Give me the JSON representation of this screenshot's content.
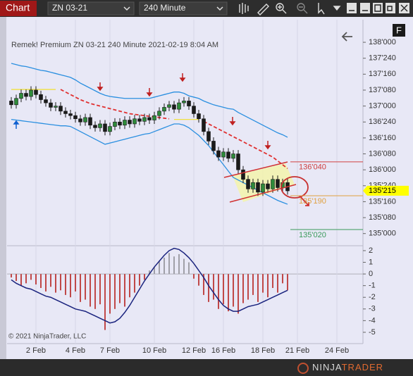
{
  "toolbar": {
    "title": "Chart",
    "instrument": "ZN 03-21",
    "interval": "240 Minute"
  },
  "ui": {
    "f_button": "F",
    "copyright": "© 2021 NinjaTrader, LLC",
    "logo": [
      "NINJA",
      "TRADER"
    ]
  },
  "chart_data": {
    "type": "candlestick",
    "title": "Remek!  Premium  ZN 03-21  240 Minute  2021-02-19 8:04 AM",
    "up_color": "#2e8b3a",
    "down_color": "#1a1a1a",
    "grid": true,
    "ylim": [
      134.82,
      138.31
    ],
    "yticks": [
      {
        "value": 138,
        "label": "138'000"
      },
      {
        "value": 137.75,
        "label": "137'240"
      },
      {
        "value": 137.5,
        "label": "137'160"
      },
      {
        "value": 137.25,
        "label": "137'080"
      },
      {
        "value": 137,
        "label": "137'000"
      },
      {
        "value": 136.75,
        "label": "136'240"
      },
      {
        "value": 136.5,
        "label": "136'160"
      },
      {
        "value": 136.25,
        "label": "136'080"
      },
      {
        "value": 136,
        "label": "136'000"
      },
      {
        "value": 135.75,
        "label": "135'240"
      },
      {
        "value": 135.5,
        "label": "135'160"
      },
      {
        "value": 135.25,
        "label": "135'080"
      },
      {
        "value": 135,
        "label": "135'000"
      }
    ],
    "categories": [
      null,
      null,
      null,
      null,
      null,
      "2 Feb",
      null,
      null,
      null,
      null,
      null,
      null,
      null,
      "4 Feb",
      null,
      null,
      null,
      null,
      null,
      null,
      "7 Feb",
      null,
      null,
      null,
      null,
      null,
      null,
      null,
      null,
      "10 Feb",
      null,
      null,
      null,
      null,
      null,
      null,
      null,
      "12 Feb",
      null,
      null,
      null,
      null,
      null,
      "16 Feb",
      null,
      null,
      null,
      null,
      null,
      null,
      null,
      "18 Feb",
      null,
      null,
      null,
      null,
      null,
      null,
      "21 Feb",
      null,
      null,
      null,
      null,
      null,
      null,
      null,
      "24 Feb",
      null,
      null,
      null,
      null,
      null
    ],
    "ohlc": [
      [
        137.08,
        137.14,
        136.96,
        137.02
      ],
      [
        137.02,
        137.18,
        136.96,
        137.12
      ],
      [
        137.12,
        137.26,
        137.06,
        137.2
      ],
      [
        137.2,
        137.26,
        137.09,
        137.15
      ],
      [
        137.15,
        137.31,
        137.09,
        137.25
      ],
      [
        137.25,
        137.31,
        137.12,
        137.18
      ],
      [
        137.18,
        137.24,
        137.04,
        137.1
      ],
      [
        137.1,
        137.16,
        136.99,
        137.05
      ],
      [
        137.05,
        137.11,
        136.92,
        136.98
      ],
      [
        136.98,
        137.06,
        136.92,
        137.0
      ],
      [
        137.0,
        137.06,
        136.86,
        136.92
      ],
      [
        136.92,
        136.98,
        136.82,
        136.88
      ],
      [
        136.88,
        136.94,
        136.79,
        136.85
      ],
      [
        136.85,
        136.91,
        136.74,
        136.8
      ],
      [
        136.8,
        136.86,
        136.69,
        136.75
      ],
      [
        136.75,
        136.88,
        136.69,
        136.82
      ],
      [
        136.82,
        136.88,
        136.64,
        136.7
      ],
      [
        136.7,
        136.76,
        136.6,
        136.66
      ],
      [
        136.66,
        136.78,
        136.6,
        136.72
      ],
      [
        136.72,
        136.78,
        136.54,
        136.6
      ],
      [
        136.6,
        136.74,
        136.54,
        136.68
      ],
      [
        136.68,
        136.81,
        136.62,
        136.75
      ],
      [
        136.75,
        136.81,
        136.64,
        136.7
      ],
      [
        136.7,
        136.84,
        136.64,
        136.78
      ],
      [
        136.78,
        136.84,
        136.66,
        136.72
      ],
      [
        136.72,
        136.86,
        136.66,
        136.8
      ],
      [
        136.8,
        136.86,
        136.7,
        136.76
      ],
      [
        136.76,
        136.88,
        136.7,
        136.82
      ],
      [
        136.82,
        136.88,
        136.72,
        136.78
      ],
      [
        136.78,
        136.91,
        136.72,
        136.85
      ],
      [
        136.85,
        136.98,
        136.79,
        136.92
      ],
      [
        136.92,
        137.04,
        136.86,
        136.98
      ],
      [
        136.98,
        137.08,
        136.92,
        137.02
      ],
      [
        137.02,
        137.08,
        136.89,
        136.95
      ],
      [
        136.95,
        137.11,
        136.89,
        137.05
      ],
      [
        137.05,
        137.14,
        136.99,
        137.08
      ],
      [
        137.08,
        137.14,
        136.94,
        137.0
      ],
      [
        137.0,
        137.06,
        136.82,
        136.88
      ],
      [
        136.88,
        136.94,
        136.74,
        136.8
      ],
      [
        136.8,
        136.86,
        136.54,
        136.6
      ],
      [
        136.6,
        136.66,
        136.39,
        136.45
      ],
      [
        136.45,
        136.51,
        136.24,
        136.3
      ],
      [
        136.3,
        136.36,
        136.14,
        136.2
      ],
      [
        136.2,
        136.34,
        136.14,
        136.28
      ],
      [
        136.28,
        136.34,
        136.12,
        136.18
      ],
      [
        136.18,
        136.31,
        136.12,
        136.25
      ],
      [
        136.25,
        136.31,
        135.94,
        136.0
      ],
      [
        136.0,
        136.06,
        135.79,
        135.85
      ],
      [
        135.85,
        135.91,
        135.64,
        135.7
      ],
      [
        135.7,
        135.86,
        135.64,
        135.8
      ],
      [
        135.8,
        135.86,
        135.59,
        135.65
      ],
      [
        135.65,
        135.84,
        135.59,
        135.78
      ],
      [
        135.78,
        135.84,
        135.64,
        135.7
      ],
      [
        135.7,
        135.91,
        135.64,
        135.85
      ],
      [
        135.85,
        135.91,
        135.66,
        135.72
      ],
      [
        135.72,
        135.86,
        135.66,
        135.8
      ],
      [
        135.8,
        135.86,
        135.61,
        135.67
      ],
      null,
      null,
      null,
      null,
      null,
      null,
      null,
      null,
      null,
      null,
      null,
      null,
      null,
      null,
      null
    ],
    "series": [
      {
        "color": "#2a8fe0",
        "values": [
          137.67,
          137.65,
          137.63,
          137.62,
          137.6,
          137.58,
          137.56,
          137.55,
          137.53,
          137.51,
          137.49,
          137.47,
          137.45,
          137.41,
          137.36,
          137.32,
          137.28,
          137.24,
          137.2,
          137.17,
          137.15,
          137.14,
          137.13,
          137.12,
          137.12,
          137.12,
          137.12,
          137.12,
          137.12,
          137.14,
          137.16,
          137.18,
          137.2,
          137.22,
          137.22,
          137.2,
          137.16,
          137.14,
          137.12,
          137.08,
          137.05,
          137.02,
          137.0,
          136.98,
          136.96,
          136.95,
          136.9,
          136.86,
          136.82,
          136.78,
          136.74,
          136.7,
          136.66,
          136.62,
          136.58,
          136.55,
          136.51,
          null,
          null,
          null,
          null,
          null,
          null,
          null,
          null,
          null,
          null,
          null,
          null,
          null,
          null,
          null
        ]
      },
      {
        "color": "#2a8fe0",
        "values": [
          136.79,
          136.78,
          136.77,
          136.76,
          136.75,
          136.74,
          136.73,
          136.72,
          136.71,
          136.7,
          136.69,
          136.69,
          136.68,
          136.64,
          136.6,
          136.56,
          136.52,
          136.48,
          136.44,
          136.4,
          136.42,
          136.44,
          136.46,
          136.48,
          136.5,
          136.52,
          136.54,
          136.56,
          136.57,
          136.6,
          136.63,
          136.66,
          136.69,
          136.72,
          136.72,
          136.7,
          136.66,
          136.6,
          136.54,
          136.46,
          136.38,
          136.28,
          136.18,
          136.08,
          135.98,
          135.88,
          135.84,
          135.8,
          135.76,
          135.72,
          135.68,
          135.64,
          135.6,
          135.56,
          135.52,
          135.49,
          135.46,
          null,
          null,
          null,
          null,
          null,
          null,
          null,
          null,
          null,
          null,
          null,
          null,
          null,
          null,
          null
        ]
      },
      {
        "color": "#e03030",
        "dash": true,
        "values": [
          null,
          null,
          null,
          null,
          null,
          null,
          null,
          null,
          null,
          null,
          137.26,
          137.22,
          137.18,
          137.14,
          137.1,
          137.07,
          137.04,
          137.02,
          137.0,
          136.98,
          136.96,
          136.94,
          136.92,
          136.9,
          136.88,
          136.87,
          136.86,
          136.85,
          136.84,
          136.83,
          136.82,
          136.81,
          136.8,
          null,
          null,
          null,
          null,
          null,
          null,
          136.76,
          136.72,
          136.68,
          136.64,
          136.6,
          136.56,
          136.52,
          136.48,
          136.44,
          136.4,
          136.36,
          136.32,
          136.28,
          136.24,
          136.2,
          136.14,
          136.08,
          136.02,
          null,
          null,
          null,
          null,
          null,
          null,
          null,
          null,
          null,
          null,
          null,
          null,
          null,
          null,
          null
        ]
      },
      {
        "color": "#f0e040",
        "values": [
          137.26,
          137.26,
          137.26,
          137.26,
          137.26,
          137.26,
          137.26,
          137.26,
          137.26,
          137.26,
          null,
          null,
          null,
          null,
          null,
          null,
          null,
          null,
          null,
          null,
          null,
          null,
          null,
          null,
          null,
          null,
          null,
          null,
          null,
          null,
          null,
          null,
          null,
          136.79,
          136.79,
          136.79,
          136.79,
          136.79,
          136.79,
          null,
          null,
          null,
          null,
          null,
          null,
          null,
          null,
          null,
          null,
          null,
          null,
          null,
          null,
          null,
          null,
          null,
          null,
          null,
          null,
          null,
          null,
          null,
          null,
          null,
          null,
          null,
          null,
          null,
          null,
          null,
          null,
          null
        ]
      }
    ],
    "levels": [
      {
        "value": 136.125,
        "label": "136'040",
        "color": "#d04040"
      },
      {
        "value": 135.59375,
        "label": "135'190",
        "color": "#e0a040"
      },
      {
        "value": 135.0625,
        "label": "135'020",
        "color": "#3a9a5a"
      }
    ],
    "last_price": {
      "value": 135.671875,
      "label": "135'215",
      "color": "#ffff00"
    },
    "indicator": {
      "ylim": [
        -5.97,
        2.36
      ],
      "yticks": [
        2,
        1,
        0,
        -1,
        -2,
        -3,
        -4,
        -5
      ],
      "histogram": {
        "pos_color": "#a0a0a8",
        "neg_color": "#c04848",
        "values": [
          -0.3,
          -0.6,
          -1.0,
          -0.8,
          -0.5,
          -0.9,
          -1.2,
          -1.5,
          -1.1,
          -1.6,
          -1.4,
          -1.8,
          -2.0,
          -1.5,
          -2.4,
          -2.2,
          -2.8,
          -3.0,
          -2.6,
          -4.8,
          -3.4,
          -3.0,
          -2.5,
          -2.8,
          -2.0,
          -1.6,
          -1.0,
          -0.5,
          0.3,
          0.6,
          1.1,
          1.4,
          1.8,
          1.5,
          1.7,
          1.3,
          1.0,
          -0.4,
          -1.0,
          -1.8,
          -2.4,
          -2.2,
          -3.0,
          -2.6,
          -3.2,
          -2.8,
          -3.4,
          -2.5,
          -2.2,
          -1.8,
          -2.4,
          -1.6,
          -2.0,
          -1.2,
          -1.6,
          -0.8,
          -1.4,
          null,
          null,
          null,
          null,
          null,
          null,
          null,
          null,
          null,
          null,
          null,
          null,
          null,
          null,
          null
        ]
      },
      "line": {
        "color": "#1a237e",
        "values": [
          -0.5,
          -0.8,
          -1.0,
          -1.2,
          -1.3,
          -1.5,
          -1.7,
          -1.9,
          -2.0,
          -2.2,
          -2.4,
          -2.6,
          -2.8,
          -3.0,
          -3.1,
          -3.2,
          -3.4,
          -3.6,
          -3.8,
          -4.0,
          -4.2,
          -4.1,
          -3.8,
          -3.3,
          -2.7,
          -2.0,
          -1.3,
          -0.6,
          0.0,
          0.6,
          1.1,
          1.6,
          2.0,
          2.2,
          2.1,
          1.8,
          1.4,
          0.9,
          0.3,
          -0.3,
          -1.0,
          -1.6,
          -2.2,
          -2.7,
          -3.0,
          -3.2,
          -3.2,
          -3.0,
          -2.8,
          -2.7,
          -2.6,
          -2.4,
          -2.2,
          -2.0,
          -1.8,
          -1.6,
          -1.4,
          null,
          null,
          null,
          null,
          null,
          null,
          null,
          null,
          null,
          null,
          null,
          null,
          null,
          null,
          null
        ]
      }
    }
  }
}
